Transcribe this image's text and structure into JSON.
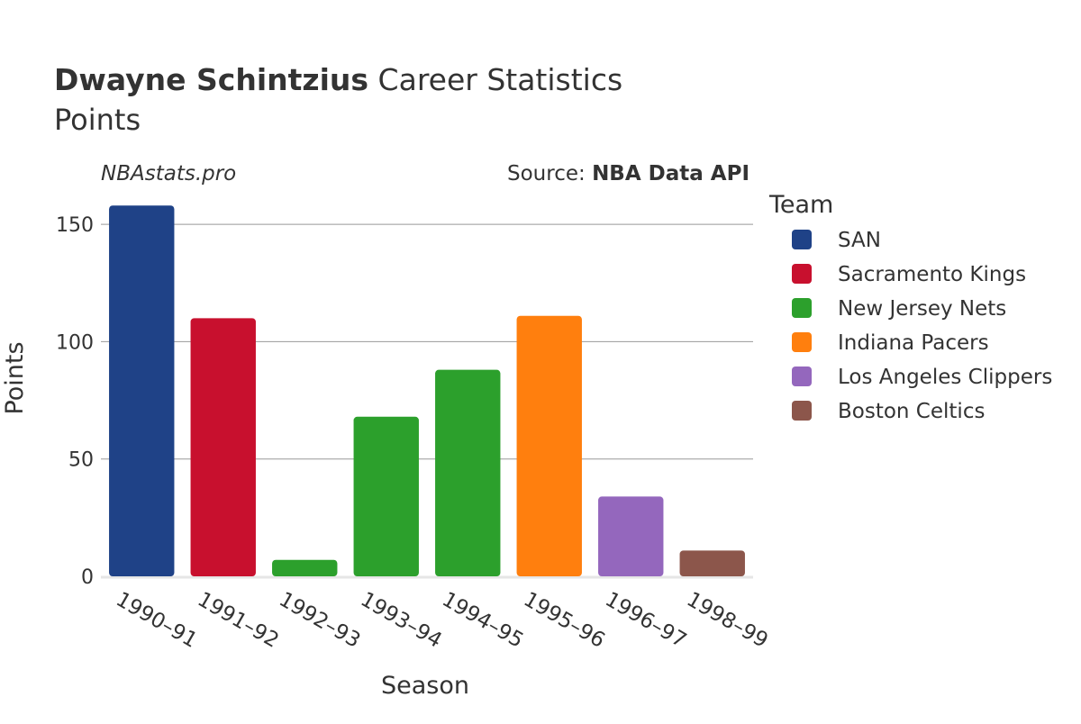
{
  "header": {
    "player_name": "Dwayne Schintzius",
    "title_rest": " Career Statistics",
    "subtitle": "Points"
  },
  "credits": {
    "site": "NBAstats.pro",
    "source_label": "Source: ",
    "source_name": "NBA Data API"
  },
  "legend": {
    "title": "Team"
  },
  "colors": {
    "text": "#333333",
    "grid": "#999999",
    "axis_line": "#e6e6e6"
  },
  "chart_data": {
    "type": "bar",
    "title": "Dwayne Schintzius Career Statistics",
    "subtitle": "Points",
    "xlabel": "Season",
    "ylabel": "Points",
    "ylim": [
      0,
      165
    ],
    "yticks": [
      0,
      50,
      100,
      150
    ],
    "grid": true,
    "legend_position": "right",
    "categories": [
      "1990–91",
      "1991–92",
      "1992–93",
      "1993–94",
      "1994–95",
      "1995–96",
      "1996–97",
      "1998–99"
    ],
    "series": [
      {
        "name": "SAN",
        "color": "#1f4287",
        "points": [
          {
            "category": "1990–91",
            "value": 158
          }
        ]
      },
      {
        "name": "Sacramento Kings",
        "color": "#c8102e",
        "points": [
          {
            "category": "1991–92",
            "value": 110
          }
        ]
      },
      {
        "name": "New Jersey Nets",
        "color": "#2ca02c",
        "points": [
          {
            "category": "1992–93",
            "value": 7
          },
          {
            "category": "1993–94",
            "value": 68
          },
          {
            "category": "1994–95",
            "value": 88
          }
        ]
      },
      {
        "name": "Indiana Pacers",
        "color": "#ff7f0e",
        "points": [
          {
            "category": "1995–96",
            "value": 111
          }
        ]
      },
      {
        "name": "Los Angeles Clippers",
        "color": "#9467bd",
        "points": [
          {
            "category": "1996–97",
            "value": 34
          }
        ]
      },
      {
        "name": "Boston Celtics",
        "color": "#8c564b",
        "points": [
          {
            "category": "1998–99",
            "value": 11
          }
        ]
      }
    ]
  }
}
